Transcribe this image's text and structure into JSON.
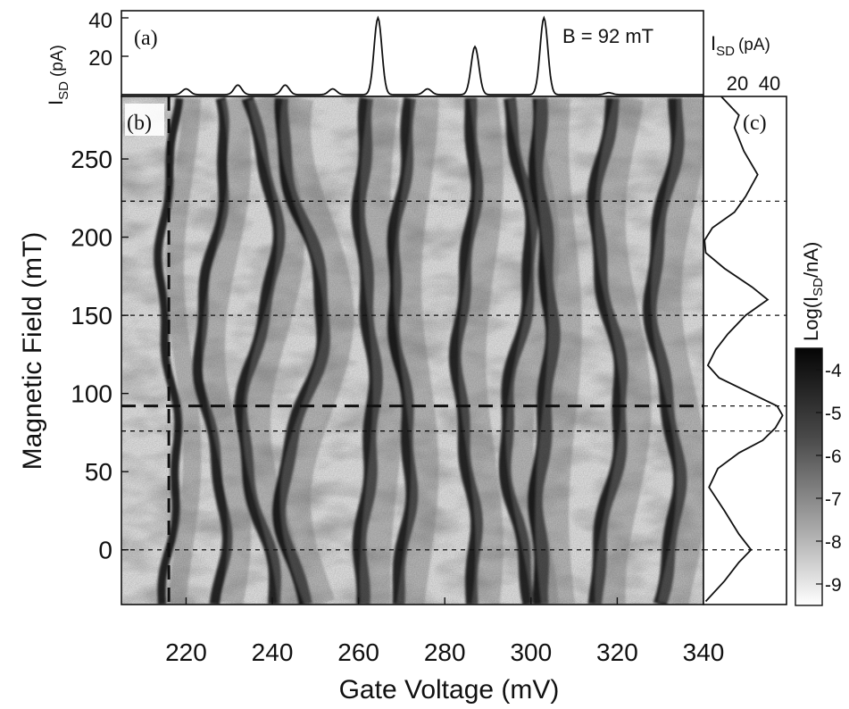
{
  "chart_data": [
    {
      "panel": "(a)",
      "type": "line",
      "annotation": "B = 92 mT",
      "ylabel_main": "I",
      "ylabel_sub": "SD",
      "ylabel_unit": "(pA)",
      "ylim": [
        0,
        40
      ],
      "yticks": [
        "20",
        "40"
      ],
      "xlim": [
        205,
        340
      ],
      "peaks": [
        {
          "x": 220,
          "y": 3
        },
        {
          "x": 232,
          "y": 5
        },
        {
          "x": 243,
          "y": 5
        },
        {
          "x": 254,
          "y": 3
        },
        {
          "x": 264.5,
          "y": 40
        },
        {
          "x": 276,
          "y": 3
        },
        {
          "x": 287,
          "y": 25
        },
        {
          "x": 303,
          "y": 40
        },
        {
          "x": 318,
          "y": 1
        }
      ]
    },
    {
      "panel": "(b)",
      "type": "heatmap",
      "xlabel": "Gate Voltage (mV)",
      "ylabel": "Magnetic Field (mT)",
      "xlim": [
        205,
        340
      ],
      "ylim": [
        -35,
        290
      ],
      "xticks": [
        "220",
        "240",
        "260",
        "280",
        "300",
        "320",
        "340"
      ],
      "yticks": [
        "0",
        "50",
        "100",
        "150",
        "200",
        "250"
      ],
      "dashed_field_lines": [
        0,
        76,
        92,
        150,
        223
      ],
      "dashed_gate_line": 216,
      "colorbar": {
        "label_main": "Log(I",
        "label_sub": "SD",
        "label_end": "/nA)",
        "range": [
          -9.5,
          -3.5
        ],
        "ticks": [
          "-4",
          "-5",
          "-6",
          "-7",
          "-8",
          "-9"
        ]
      },
      "peak_lines": [
        {
          "v": 216,
          "amp": 2,
          "w": 1.2
        },
        {
          "v": 226,
          "amp": 3,
          "w": 1.5
        },
        {
          "v": 237,
          "amp": 4,
          "w": 1.8
        },
        {
          "v": 247,
          "amp": 5,
          "w": 2.0
        },
        {
          "v": 262,
          "amp": 1.5,
          "w": 2.0
        },
        {
          "v": 270,
          "amp": 2,
          "w": 1.8
        },
        {
          "v": 285,
          "amp": 2,
          "w": 1.8
        },
        {
          "v": 297,
          "amp": 3,
          "w": 1.8
        },
        {
          "v": 303,
          "amp": 1.5,
          "w": 2.2
        },
        {
          "v": 318,
          "amp": 3,
          "w": 2.0
        },
        {
          "v": 331,
          "amp": 3,
          "w": 2.0
        }
      ]
    },
    {
      "panel": "(c)",
      "type": "line",
      "xlabel_main": "I",
      "xlabel_sub": "SD",
      "xlabel_unit": "(pA)",
      "xticks": [
        "20",
        "40"
      ],
      "xlim": [
        0,
        50
      ],
      "profile": [
        {
          "b": -33,
          "i": 2
        },
        {
          "b": -20,
          "i": 12
        },
        {
          "b": -8,
          "i": 22
        },
        {
          "b": 0,
          "i": 28
        },
        {
          "b": 10,
          "i": 22
        },
        {
          "b": 25,
          "i": 12
        },
        {
          "b": 40,
          "i": 4
        },
        {
          "b": 52,
          "i": 8
        },
        {
          "b": 62,
          "i": 22
        },
        {
          "b": 70,
          "i": 35
        },
        {
          "b": 78,
          "i": 44
        },
        {
          "b": 86,
          "i": 47
        },
        {
          "b": 92,
          "i": 45
        },
        {
          "b": 100,
          "i": 28
        },
        {
          "b": 110,
          "i": 10
        },
        {
          "b": 118,
          "i": 2
        },
        {
          "b": 128,
          "i": 8
        },
        {
          "b": 138,
          "i": 14
        },
        {
          "b": 150,
          "i": 26
        },
        {
          "b": 160,
          "i": 38
        },
        {
          "b": 168,
          "i": 30
        },
        {
          "b": 180,
          "i": 12
        },
        {
          "b": 190,
          "i": 2
        },
        {
          "b": 198,
          "i": 0
        },
        {
          "b": 206,
          "i": 6
        },
        {
          "b": 216,
          "i": 18
        },
        {
          "b": 226,
          "i": 26
        },
        {
          "b": 240,
          "i": 32
        },
        {
          "b": 255,
          "i": 25
        },
        {
          "b": 270,
          "i": 18
        },
        {
          "b": 278,
          "i": 22
        },
        {
          "b": 290,
          "i": 10
        }
      ]
    }
  ],
  "labels": {
    "panel_a": "(a)",
    "panel_b": "(b)",
    "panel_c": "(c)"
  }
}
